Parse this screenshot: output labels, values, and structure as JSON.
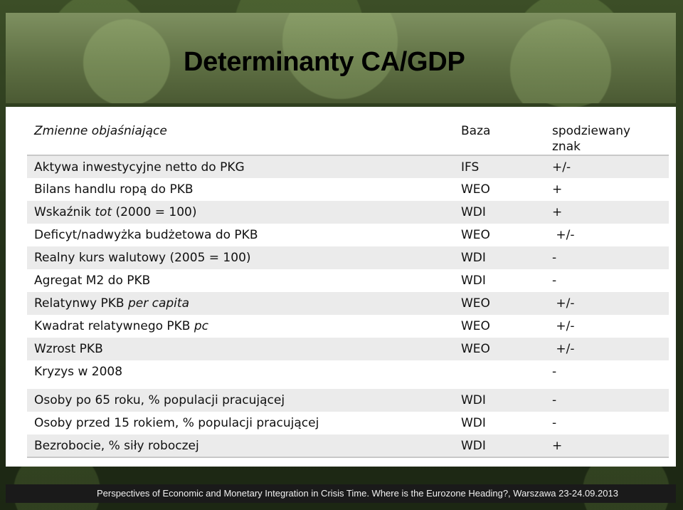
{
  "slide": {
    "title": "Determinanty CA/GDP",
    "footer": "Perspectives of Economic  and Monetary Integration in Crisis Time. Where is the Eurozone Heading?, Warszawa 23-24.09.2013"
  },
  "table": {
    "headers": {
      "variable": "Zmienne objaśniające",
      "source": "Baza",
      "sign": "spodziewany znak"
    },
    "rows": [
      {
        "variable": "Aktywa inwestycyjne netto do PKG",
        "variable_italic": "",
        "variable_after": "",
        "source": "IFS",
        "sign": "+/-"
      },
      {
        "variable": "Bilans handlu ropą do PKB",
        "variable_italic": "",
        "variable_after": "",
        "source": "WEO",
        "sign": "+"
      },
      {
        "variable": "Wskaźnik ",
        "variable_italic": "tot",
        "variable_after": " (2000 = 100)",
        "source": "WDI",
        "sign": "+"
      },
      {
        "variable": "Deficyt/nadwyżka budżetowa do PKB",
        "variable_italic": "",
        "variable_after": "",
        "source": "WEO",
        "sign": " +/-"
      },
      {
        "variable": "Realny kurs walutowy (2005 = 100)",
        "variable_italic": "",
        "variable_after": "",
        "source": "WDI",
        "sign": "-"
      },
      {
        "variable": "Agregat M2 do PKB",
        "variable_italic": "",
        "variable_after": "",
        "source": "WDI",
        "sign": "-"
      },
      {
        "variable": "Relatynwy PKB ",
        "variable_italic": "per capita",
        "variable_after": "",
        "source": "WEO",
        "sign": " +/-"
      },
      {
        "variable": "Kwadrat relatywnego PKB ",
        "variable_italic": "pc",
        "variable_after": "",
        "source": "WEO",
        "sign": " +/-"
      },
      {
        "variable": "Wzrost PKB",
        "variable_italic": "",
        "variable_after": "",
        "source": "WEO",
        "sign": " +/-"
      },
      {
        "variable": "Kryzys w 2008",
        "variable_italic": "",
        "variable_after": "",
        "source": "",
        "sign": "-"
      },
      {
        "variable": "Osoby po 65 roku, % populacji pracującej",
        "variable_italic": "",
        "variable_after": "",
        "source": "WDI",
        "sign": "-"
      },
      {
        "variable": "Osoby przed 15 rokiem, % populacji pracującej",
        "variable_italic": "",
        "variable_after": "",
        "source": "WDI",
        "sign": "-"
      },
      {
        "variable": "Bezrobocie, % siły roboczej",
        "variable_italic": "",
        "variable_after": "",
        "source": "WDI",
        "sign": "+"
      }
    ]
  },
  "colors": {
    "row_shade": "#ebebeb",
    "title_text": "#000000",
    "footer_text": "#f0f0f0"
  }
}
